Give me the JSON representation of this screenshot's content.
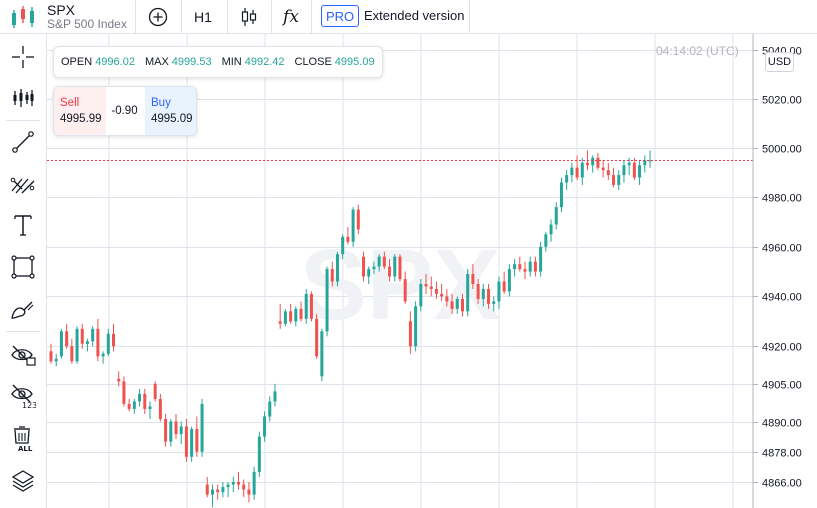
{
  "symbol": {
    "name": "SPX",
    "description": "S&P 500 Index"
  },
  "toolbar": {
    "timeframe": "H1",
    "formula_label": "fx",
    "pro_badge": "PRO",
    "extended_label": "Extended version"
  },
  "legend": {
    "open_label": "OPEN",
    "open_value": "4996.02",
    "max_label": "MAX",
    "max_value": "4999.53",
    "min_label": "MIN",
    "min_value": "4992.42",
    "close_label": "CLOSE",
    "close_value": "4995.09"
  },
  "trade": {
    "sell_label": "Sell",
    "sell_price": "4995.99",
    "spread": "-0.90",
    "buy_label": "Buy",
    "buy_price": "4995.09"
  },
  "clock": "04:14:02 (UTC)",
  "currency": "USD",
  "watermark": "SPX",
  "colors": {
    "up": "#26a69a",
    "down": "#ef5350",
    "grid": "#e0e3eb",
    "accent": "#2962ff",
    "price_line": "#f23645"
  },
  "left_tools": [
    "crosshair-icon",
    "indicators-icon",
    "trend-line-icon",
    "fib-icon",
    "text-icon",
    "rectangle-icon",
    "brush-icon",
    "hide-drawings-icon",
    "measure-icon",
    "remove-all-icon",
    "layers-icon"
  ],
  "chart_data": {
    "type": "candlestick",
    "y_scale": "log",
    "y_ticks": [
      4866.0,
      4878.0,
      4890.0,
      4905.0,
      4920.0,
      4940.0,
      4960.0,
      4980.0,
      5000.0,
      5020.0,
      5040.0
    ],
    "y_tick_labels": [
      "4866.00",
      "4878.00",
      "4890.00",
      "4905.00",
      "4920.00",
      "4940.00",
      "4960.00",
      "4980.00",
      "5000.00",
      "5020.00",
      "5040.00"
    ],
    "price_line": 4995.09,
    "candles": [
      [
        4918,
        4921,
        4913,
        4914
      ],
      [
        4914,
        4917,
        4912,
        4915
      ],
      [
        4916,
        4927,
        4915,
        4926
      ],
      [
        4926,
        4929,
        4919,
        4920
      ],
      [
        4920,
        4923,
        4913,
        4914
      ],
      [
        4914,
        4928,
        4913,
        4927
      ],
      [
        4927,
        4929,
        4919,
        4921
      ],
      [
        4921,
        4923,
        4918,
        4922
      ],
      [
        4922,
        4928,
        4920,
        4927
      ],
      [
        4927,
        4931,
        4914,
        4916
      ],
      [
        4916,
        4918,
        4913,
        4917
      ],
      [
        4917,
        4927,
        4916,
        4925
      ],
      [
        4925,
        4929,
        4918,
        4920
      ],
      [
        4907,
        4910,
        4904,
        4906
      ],
      [
        4906,
        4908,
        4896,
        4897
      ],
      [
        4897,
        4899,
        4894,
        4895
      ],
      [
        4895,
        4899,
        4893,
        4898
      ],
      [
        4898,
        4903,
        4896,
        4901
      ],
      [
        4901,
        4903,
        4893,
        4895
      ],
      [
        4895,
        4898,
        4891,
        4896
      ],
      [
        4905,
        4906,
        4898,
        4899
      ],
      [
        4899,
        4901,
        4890,
        4891
      ],
      [
        4891,
        4893,
        4880,
        4882
      ],
      [
        4882,
        4891,
        4880,
        4890
      ],
      [
        4890,
        4893,
        4883,
        4885
      ],
      [
        4885,
        4890,
        4881,
        4888
      ],
      [
        4888,
        4891,
        4874,
        4876
      ],
      [
        4876,
        4888,
        4874,
        4887
      ],
      [
        4887,
        4892,
        4876,
        4878
      ],
      [
        4878,
        4899,
        4876,
        4897
      ],
      [
        4865,
        4868,
        4860,
        4861
      ],
      [
        4861,
        4865,
        4856,
        4863
      ],
      [
        4863,
        4865,
        4859,
        4862
      ],
      [
        4862,
        4866,
        4860,
        4864
      ],
      [
        4864,
        4866,
        4860,
        4865
      ],
      [
        4865,
        4868,
        4862,
        4866
      ],
      [
        4866,
        4870,
        4863,
        4865
      ],
      [
        4865,
        4867,
        4860,
        4863
      ],
      [
        4863,
        4866,
        4858,
        4861
      ],
      [
        4861,
        4872,
        4859,
        4870
      ],
      [
        4870,
        4886,
        4868,
        4884
      ],
      [
        4884,
        4894,
        4882,
        4892
      ],
      [
        4892,
        4900,
        4890,
        4898
      ],
      [
        4898,
        4905,
        4896,
        4902
      ],
      [
        4930,
        4937,
        4927,
        4929
      ],
      [
        4929,
        4935,
        4928,
        4934
      ],
      [
        4934,
        4937,
        4929,
        4930
      ],
      [
        4930,
        4936,
        4928,
        4935
      ],
      [
        4935,
        4938,
        4930,
        4931
      ],
      [
        4931,
        4943,
        4929,
        4941
      ],
      [
        4941,
        4942,
        4930,
        4931
      ],
      [
        4931,
        4933,
        4915,
        4916
      ],
      [
        4908,
        4927,
        4906,
        4926
      ],
      [
        4926,
        4952,
        4924,
        4951
      ],
      [
        4951,
        4954,
        4944,
        4946
      ],
      [
        4946,
        4958,
        4944,
        4957
      ],
      [
        4957,
        4965,
        4955,
        4964
      ],
      [
        4964,
        4968,
        4961,
        4962
      ],
      [
        4962,
        4976,
        4960,
        4975
      ],
      [
        4975,
        4977,
        4965,
        4967
      ],
      [
        4956,
        4958,
        4946,
        4948
      ],
      [
        4948,
        4952,
        4945,
        4951
      ],
      [
        4951,
        4954,
        4949,
        4952
      ],
      [
        4952,
        4957,
        4950,
        4956
      ],
      [
        4956,
        4958,
        4951,
        4952
      ],
      [
        4952,
        4955,
        4946,
        4948
      ],
      [
        4948,
        4957,
        4946,
        4956
      ],
      [
        4956,
        4957,
        4946,
        4947
      ],
      [
        4947,
        4950,
        4937,
        4938
      ],
      [
        4930,
        4934,
        4917,
        4920
      ],
      [
        4920,
        4938,
        4918,
        4936
      ],
      [
        4936,
        4947,
        4934,
        4945
      ],
      [
        4945,
        4949,
        4941,
        4944
      ],
      [
        4944,
        4948,
        4940,
        4943
      ],
      [
        4943,
        4946,
        4939,
        4941
      ],
      [
        4941,
        4945,
        4938,
        4940
      ],
      [
        4940,
        4943,
        4936,
        4938
      ],
      [
        4938,
        4941,
        4933,
        4935
      ],
      [
        4935,
        4940,
        4933,
        4939
      ],
      [
        4939,
        4941,
        4932,
        4934
      ],
      [
        4934,
        4951,
        4932,
        4949
      ],
      [
        4949,
        4953,
        4943,
        4945
      ],
      [
        4945,
        4947,
        4937,
        4939
      ],
      [
        4939,
        4945,
        4936,
        4943
      ],
      [
        4943,
        4945,
        4935,
        4937
      ],
      [
        4937,
        4940,
        4934,
        4938
      ],
      [
        4938,
        4948,
        4935,
        4946
      ],
      [
        4946,
        4950,
        4941,
        4942
      ],
      [
        4942,
        4953,
        4940,
        4951
      ],
      [
        4951,
        4955,
        4948,
        4953
      ],
      [
        4953,
        4956,
        4950,
        4951
      ],
      [
        4951,
        4954,
        4947,
        4950
      ],
      [
        4950,
        4956,
        4948,
        4954
      ],
      [
        4954,
        4956,
        4948,
        4950
      ],
      [
        4950,
        4962,
        4948,
        4960
      ],
      [
        4960,
        4966,
        4958,
        4965
      ],
      [
        4965,
        4971,
        4962,
        4969
      ],
      [
        4969,
        4978,
        4967,
        4976
      ],
      [
        4976,
        4988,
        4974,
        4986
      ],
      [
        4986,
        4991,
        4983,
        4989
      ],
      [
        4989,
        4994,
        4986,
        4992
      ],
      [
        4992,
        4997,
        4987,
        4988
      ],
      [
        4988,
        4996,
        4985,
        4994
      ],
      [
        4994,
        4999,
        4991,
        4993
      ],
      [
        4993,
        4997,
        4990,
        4996
      ],
      [
        4996,
        4998,
        4991,
        4992
      ],
      [
        4992,
        4995,
        4988,
        4991
      ],
      [
        4991,
        4994,
        4987,
        4989
      ],
      [
        4989,
        4992,
        4984,
        4985
      ],
      [
        4985,
        4991,
        4983,
        4989
      ],
      [
        4989,
        4995,
        4986,
        4993
      ],
      [
        4993,
        4996,
        4989,
        4994
      ],
      [
        4994,
        4996,
        4987,
        4988
      ],
      [
        4988,
        4995,
        4985,
        4993
      ],
      [
        4993,
        4997,
        4990,
        4995
      ],
      [
        4995,
        4999,
        4992,
        4995
      ]
    ]
  }
}
